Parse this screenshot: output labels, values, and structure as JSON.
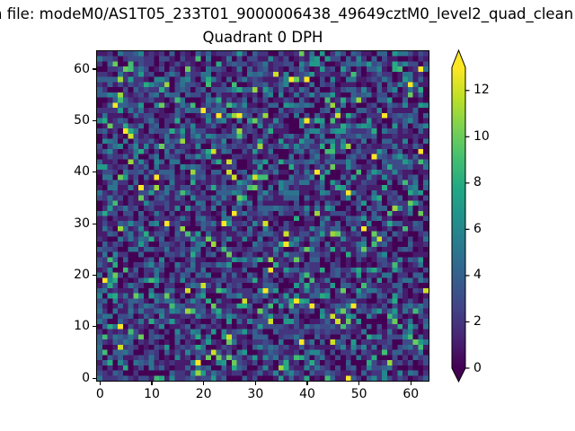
{
  "figure": {
    "suptitle": "n file: modeM0/AS1T05_233T01_9000006438_49649cztM0_level2_quad_clean",
    "axes_title": "Quadrant 0 DPH",
    "background_color": "#ffffff",
    "text_color": "#000000"
  },
  "chart_data": {
    "type": "heatmap",
    "title": "Quadrant 0 DPH",
    "xlabel": "",
    "ylabel": "",
    "grid_cols": 64,
    "grid_rows": 64,
    "x_range": [
      0,
      64
    ],
    "y_range": [
      0,
      64
    ],
    "x_ticks": [
      0,
      10,
      20,
      30,
      40,
      50,
      60
    ],
    "y_ticks": [
      0,
      10,
      20,
      30,
      40,
      50,
      60
    ],
    "colormap": "viridis",
    "colormap_stops": [
      "#440154",
      "#482475",
      "#414487",
      "#355f8d",
      "#2a788e",
      "#21918c",
      "#22a884",
      "#44bf70",
      "#7ad151",
      "#bddf26",
      "#fde725"
    ],
    "colorbar": {
      "ticks": [
        0,
        2,
        4,
        6,
        8,
        10,
        12
      ],
      "vmin": 0,
      "vmax": 13,
      "extend": "both",
      "extend_min_color": "#440154",
      "extend_max_color": "#fde725"
    },
    "value_distribution_cdf": [
      [
        0,
        0.2
      ],
      [
        1,
        0.38
      ],
      [
        2,
        0.55
      ],
      [
        3,
        0.69
      ],
      [
        4,
        0.79
      ],
      [
        5,
        0.86
      ],
      [
        6,
        0.905
      ],
      [
        7,
        0.935
      ],
      [
        8,
        0.955
      ],
      [
        9,
        0.968
      ],
      [
        10,
        0.978
      ],
      [
        11,
        0.986
      ],
      [
        12,
        0.993
      ],
      [
        13,
        1.0
      ]
    ],
    "render_seed": 49649
  }
}
